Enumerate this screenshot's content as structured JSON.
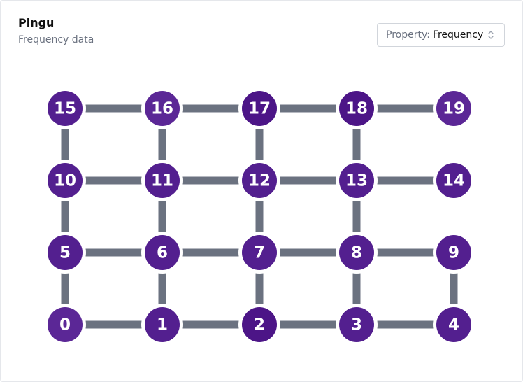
{
  "header": {
    "title": "Pingu",
    "subtitle": "Frequency data"
  },
  "property_select": {
    "label": "Property:",
    "value": "Frequency"
  },
  "colors": {
    "edge": "#6b7280",
    "node_dark": "#4c1587",
    "node_mid": "#531f8f",
    "node_light": "#5b2796"
  },
  "graph": {
    "rows": [
      [
        15,
        16,
        17,
        18,
        19
      ],
      [
        10,
        11,
        12,
        13,
        14
      ],
      [
        5,
        6,
        7,
        8,
        9
      ],
      [
        0,
        1,
        2,
        3,
        4
      ]
    ],
    "node_shades": {
      "0": "light",
      "1": "mid",
      "2": "dark",
      "3": "mid",
      "4": "mid",
      "5": "mid",
      "6": "mid",
      "7": "mid",
      "8": "mid",
      "9": "mid",
      "10": "mid",
      "11": "mid",
      "12": "mid",
      "13": "mid",
      "14": "mid",
      "15": "mid",
      "16": "light",
      "17": "dark",
      "18": "dark",
      "19": "light"
    },
    "edges": [
      [
        15,
        16
      ],
      [
        16,
        17
      ],
      [
        17,
        18
      ],
      [
        18,
        19
      ],
      [
        10,
        11
      ],
      [
        11,
        12
      ],
      [
        12,
        13
      ],
      [
        13,
        14
      ],
      [
        5,
        6
      ],
      [
        6,
        7
      ],
      [
        7,
        8
      ],
      [
        8,
        9
      ],
      [
        0,
        1
      ],
      [
        1,
        2
      ],
      [
        2,
        3
      ],
      [
        3,
        4
      ],
      [
        15,
        10
      ],
      [
        16,
        11
      ],
      [
        17,
        12
      ],
      [
        18,
        13
      ],
      [
        10,
        5
      ],
      [
        11,
        6
      ],
      [
        12,
        7
      ],
      [
        13,
        8
      ],
      [
        5,
        0
      ],
      [
        6,
        1
      ],
      [
        7,
        2
      ],
      [
        8,
        3
      ],
      [
        9,
        4
      ]
    ]
  }
}
